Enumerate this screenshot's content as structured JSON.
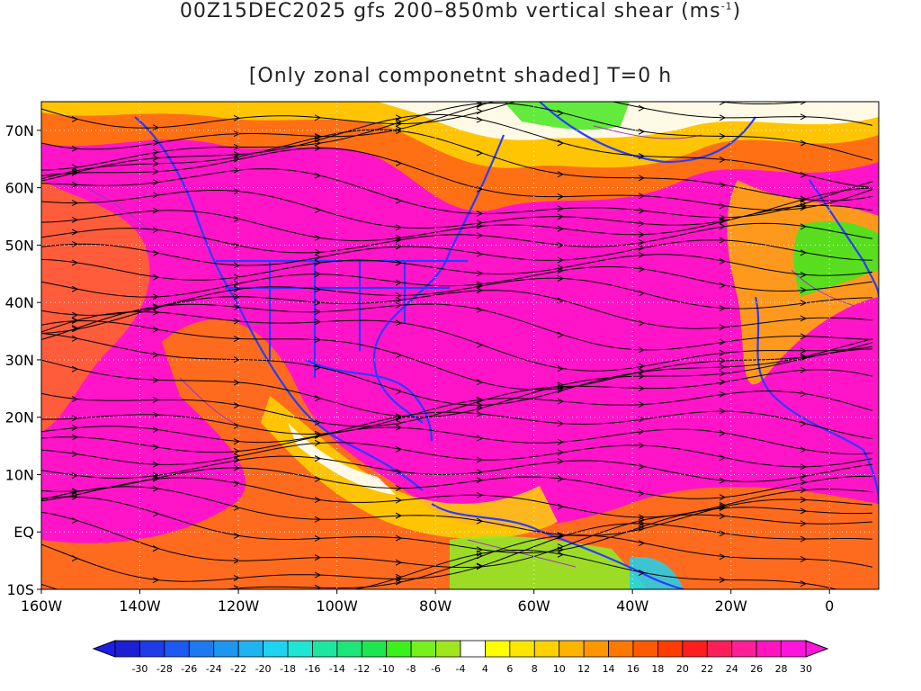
{
  "title": {
    "line1_prefix": "00Z15DEC2025 gfs 200–850mb vertical shear (ms",
    "line1_sup": "-1",
    "line1_suffix": ")",
    "line2": "[Only zonal componetnt shaded] T=0 h"
  },
  "map": {
    "lon_labels": [
      "160W",
      "140W",
      "120W",
      "100W",
      "80W",
      "60W",
      "40W",
      "20W",
      "0"
    ],
    "lat_labels": [
      "70N",
      "60N",
      "50N",
      "40N",
      "30N",
      "20N",
      "10N",
      "EQ",
      "10S"
    ],
    "lon_range": [
      -160,
      10
    ],
    "lat_range": [
      -10,
      75
    ],
    "grid": true,
    "coast_color": "#2a3cff",
    "contour_color": "#9b30c8",
    "streamline_color": "#000000"
  },
  "colorbar": {
    "tick_labels": [
      "-30",
      "-28",
      "-26",
      "-24",
      "-22",
      "-20",
      "-18",
      "-16",
      "-14",
      "-12",
      "-10",
      "-8",
      "-6",
      "-4",
      "4",
      "6",
      "8",
      "10",
      "12",
      "14",
      "16",
      "18",
      "20",
      "22",
      "24",
      "26",
      "28",
      "30"
    ],
    "colors": [
      "#1e1ed2",
      "#1f3ce6",
      "#1e5af0",
      "#1e78f0",
      "#1e96f0",
      "#1eb4f0",
      "#1ed2f0",
      "#1ee6d2",
      "#1ee6a0",
      "#1ee678",
      "#1ee650",
      "#3cf01e",
      "#78f01e",
      "#a0e61e",
      "#ffffff",
      "#ffff00",
      "#ffe600",
      "#ffd200",
      "#ffb400",
      "#ff9600",
      "#ff7800",
      "#ff5a00",
      "#ff3c00",
      "#ff1e1e",
      "#ff1e5a",
      "#ff1e96",
      "#ff14be",
      "#ff14dc"
    ]
  }
}
